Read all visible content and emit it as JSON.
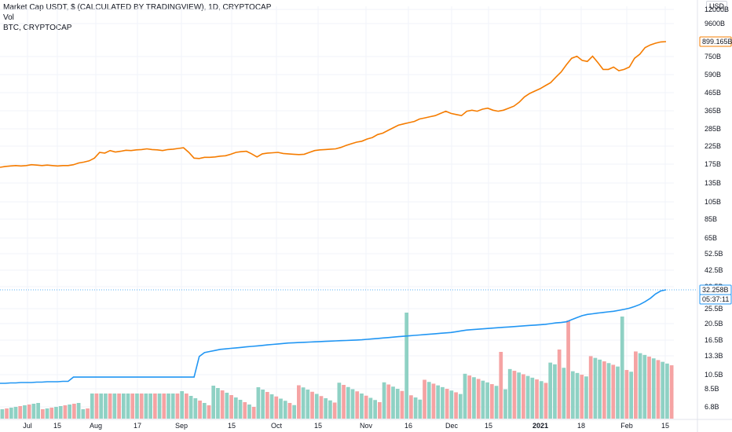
{
  "legend": {
    "title": "Market Cap USDT, $ (CALCULATED BY TRADINGVIEW), 1D, CRYPTOCAP",
    "vol": "Vol",
    "compare": "BTC, CRYPTOCAP"
  },
  "currency": "USD",
  "colors": {
    "compare_line": "#f57c00",
    "main_line": "#2196f3",
    "vol_up": "#8fd1c4",
    "vol_down": "#f5a3a3",
    "grid": "#f0f3fa",
    "axis_border": "#e0e3eb"
  },
  "price_axis_labels": [
    "12000B",
    "9600B",
    "750B",
    "590B",
    "465B",
    "365B",
    "285B",
    "225B",
    "175B",
    "135B",
    "105B",
    "85B",
    "65B",
    "52.5B",
    "42.5B",
    "33.5B",
    "25.5B",
    "20.5B",
    "16.5B",
    "13.3B",
    "10.5B",
    "8.5B",
    "6.8B"
  ],
  "last_values": {
    "compare": "899.165B",
    "main": "32.258B",
    "countdown": "05:37:11"
  },
  "chart_data": {
    "type": "line",
    "x_range": [
      "2020-07-01",
      "2021-02-17"
    ],
    "time_labels": [
      "Jul",
      "15",
      "Aug",
      "17",
      "Sep",
      "15",
      "Oct",
      "15",
      "Nov",
      "16",
      "Dec",
      "15",
      "2021",
      "18",
      "Feb",
      "15"
    ],
    "series": [
      {
        "name": "BTC, CRYPTOCAP",
        "values": [
          168,
          170,
          171,
          172,
          171,
          172,
          174,
          173,
          172,
          173,
          172,
          171,
          172,
          172,
          174,
          178,
          180,
          183,
          190,
          205,
          203,
          210,
          206,
          208,
          211,
          210,
          212,
          213,
          215,
          213,
          212,
          210,
          213,
          214,
          216,
          218,
          205,
          190,
          189,
          192,
          192,
          193,
          195,
          196,
          200,
          205,
          207,
          208,
          201,
          193,
          201,
          203,
          204,
          205,
          202,
          201,
          200,
          199,
          200,
          205,
          210,
          212,
          213,
          214,
          215,
          219,
          225,
          230,
          235,
          238,
          245,
          250,
          260,
          265,
          275,
          285,
          295,
          300,
          305,
          310,
          320,
          325,
          330,
          335,
          345,
          355,
          345,
          340,
          335,
          355,
          360,
          355,
          365,
          370,
          360,
          355,
          360,
          370,
          380,
          400,
          430,
          450,
          465,
          480,
          500,
          520,
          560,
          600,
          660,
          720,
          740,
          700,
          690,
          740,
          680,
          620,
          620,
          640,
          610,
          620,
          640,
          720,
          760,
          830,
          860,
          880,
          895,
          899
        ]
      },
      {
        "name": "Market Cap USDT",
        "values": [
          9.2,
          9.2,
          9.25,
          9.25,
          9.3,
          9.3,
          9.3,
          9.35,
          9.35,
          9.4,
          9.4,
          9.4,
          9.45,
          9.45,
          10.0,
          10.0,
          10.0,
          10.0,
          10.0,
          10.0,
          10.0,
          10.0,
          10.0,
          10.0,
          10.0,
          10.0,
          10.0,
          10.0,
          10.0,
          10.0,
          10.0,
          10.0,
          10.0,
          10.0,
          10.0,
          10.0,
          10.0,
          10.0,
          13.2,
          13.9,
          14.1,
          14.3,
          14.5,
          14.6,
          14.7,
          14.8,
          14.9,
          15.0,
          15.1,
          15.2,
          15.3,
          15.4,
          15.5,
          15.6,
          15.7,
          15.8,
          15.85,
          15.9,
          15.95,
          16.0,
          16.05,
          16.1,
          16.15,
          16.2,
          16.25,
          16.3,
          16.35,
          16.4,
          16.45,
          16.5,
          16.6,
          16.7,
          16.8,
          16.9,
          17.0,
          17.1,
          17.2,
          17.3,
          17.4,
          17.5,
          17.6,
          17.7,
          17.8,
          17.9,
          18.0,
          18.1,
          18.2,
          18.4,
          18.6,
          18.8,
          18.9,
          19.0,
          19.1,
          19.2,
          19.3,
          19.4,
          19.5,
          19.6,
          19.7,
          19.8,
          19.9,
          20.0,
          20.1,
          20.2,
          20.3,
          20.5,
          20.7,
          20.8,
          21.0,
          21.6,
          22.2,
          22.8,
          23.2,
          23.4,
          23.6,
          23.8,
          24.0,
          24.2,
          24.5,
          24.8,
          25.2,
          25.8,
          26.5,
          27.5,
          28.8,
          30.5,
          31.8,
          32.258
        ]
      }
    ]
  }
}
